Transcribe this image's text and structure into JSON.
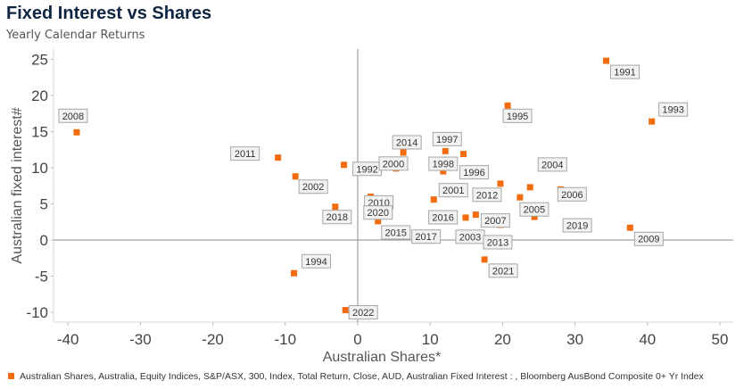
{
  "header": {
    "title": "Fixed Interest vs Shares",
    "subtitle": "Yearly Calendar Returns"
  },
  "legend": {
    "label": "Australian Shares, Australia, Equity Indices, S&P/ASX, 300, Index, Total Return, Close, AUD, Australian Fixed Interest : , Bloomberg AusBond Composite 0+ Yr Index",
    "color": "#f26c0d"
  },
  "chart_data": {
    "type": "scatter",
    "title": "Fixed Interest vs Shares",
    "subtitle": "Yearly Calendar Returns",
    "xlabel": "Australian Shares*",
    "ylabel": "Australian fixed interest#",
    "xlim": [
      -42,
      52
    ],
    "ylim": [
      -11,
      26
    ],
    "xticks": [
      -40,
      -30,
      -20,
      -10,
      0,
      10,
      20,
      30,
      40,
      50
    ],
    "yticks": [
      -10,
      -5,
      0,
      5,
      10,
      15,
      20,
      25
    ],
    "grid": false,
    "legend_position": "bottom-left",
    "marker_color": "#f26c0d",
    "points": [
      {
        "label": "1991",
        "x": 34.3,
        "y": 24.8
      },
      {
        "label": "1992",
        "x": -1.9,
        "y": 10.4
      },
      {
        "label": "1993",
        "x": 40.6,
        "y": 16.4
      },
      {
        "label": "1994",
        "x": -8.8,
        "y": -4.6
      },
      {
        "label": "1995",
        "x": 20.7,
        "y": 18.6
      },
      {
        "label": "1996",
        "x": 14.6,
        "y": 11.9
      },
      {
        "label": "1997",
        "x": 12.1,
        "y": 12.3
      },
      {
        "label": "1998",
        "x": 11.8,
        "y": 9.5
      },
      {
        "label": "2000",
        "x": 5.3,
        "y": 9.9
      },
      {
        "label": "2001",
        "x": 10.5,
        "y": 5.6
      },
      {
        "label": "2002",
        "x": -8.6,
        "y": 8.8
      },
      {
        "label": "2003",
        "x": 14.9,
        "y": 3.1
      },
      {
        "label": "2004",
        "x": 23.8,
        "y": 7.3
      },
      {
        "label": "2005",
        "x": 22.4,
        "y": 5.9
      },
      {
        "label": "2006",
        "x": 28.0,
        "y": 7.0
      },
      {
        "label": "2007",
        "x": 16.3,
        "y": 3.5
      },
      {
        "label": "2008",
        "x": -38.8,
        "y": 14.9
      },
      {
        "label": "2009",
        "x": 37.6,
        "y": 1.7
      },
      {
        "label": "2010",
        "x": 1.8,
        "y": 6.0
      },
      {
        "label": "2011",
        "x": -11.0,
        "y": 11.4
      },
      {
        "label": "2012",
        "x": 19.7,
        "y": 7.8
      },
      {
        "label": "2013",
        "x": 19.7,
        "y": 2.1
      },
      {
        "label": "2014",
        "x": 6.3,
        "y": 12.1
      },
      {
        "label": "2015",
        "x": 2.8,
        "y": 2.6
      },
      {
        "label": "2016",
        "x": 11.9,
        "y": 3.7
      },
      {
        "label": "2017",
        "x": 11.9,
        "y": 3.0
      },
      {
        "label": "2018",
        "x": -3.1,
        "y": 4.6
      },
      {
        "label": "2019",
        "x": 24.4,
        "y": 3.2
      },
      {
        "label": "2020",
        "x": 1.7,
        "y": 4.6
      },
      {
        "label": "2021",
        "x": 17.5,
        "y": -2.7
      },
      {
        "label": "2022",
        "x": -1.7,
        "y": -9.7
      }
    ]
  }
}
